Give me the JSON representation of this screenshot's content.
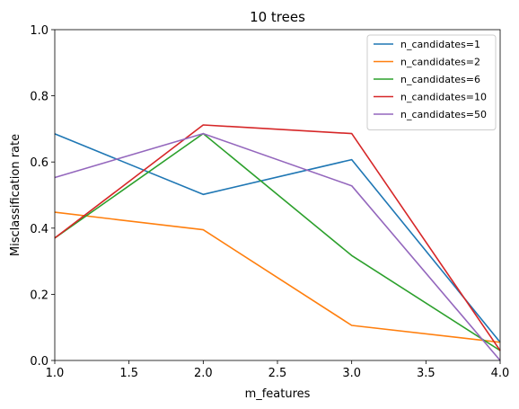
{
  "chart_data": {
    "type": "line",
    "title": "10 trees",
    "xlabel": "m_features",
    "ylabel": "Misclassification rate",
    "x": [
      1.0,
      2.0,
      3.0,
      4.0
    ],
    "xlim": [
      1.0,
      4.0
    ],
    "ylim": [
      0.0,
      1.0
    ],
    "xticks": [
      "1.0",
      "1.5",
      "2.0",
      "2.5",
      "3.0",
      "3.5",
      "4.0"
    ],
    "yticks": [
      "0.0",
      "0.2",
      "0.4",
      "0.6",
      "0.8",
      "1.0"
    ],
    "grid": false,
    "legend_position": "top-right",
    "series": [
      {
        "name": "n_candidates=1",
        "color": "#1f77b4",
        "values": [
          0.685,
          0.502,
          0.607,
          0.055
        ]
      },
      {
        "name": "n_candidates=2",
        "color": "#ff7f0e",
        "values": [
          0.448,
          0.395,
          0.106,
          0.055
        ]
      },
      {
        "name": "n_candidates=6",
        "color": "#2ca02c",
        "values": [
          0.37,
          0.686,
          0.317,
          0.03
        ]
      },
      {
        "name": "n_candidates=10",
        "color": "#d62728",
        "values": [
          0.37,
          0.712,
          0.686,
          0.03
        ]
      },
      {
        "name": "n_candidates=50",
        "color": "#9467bd",
        "values": [
          0.553,
          0.686,
          0.528,
          0.0
        ]
      }
    ]
  }
}
